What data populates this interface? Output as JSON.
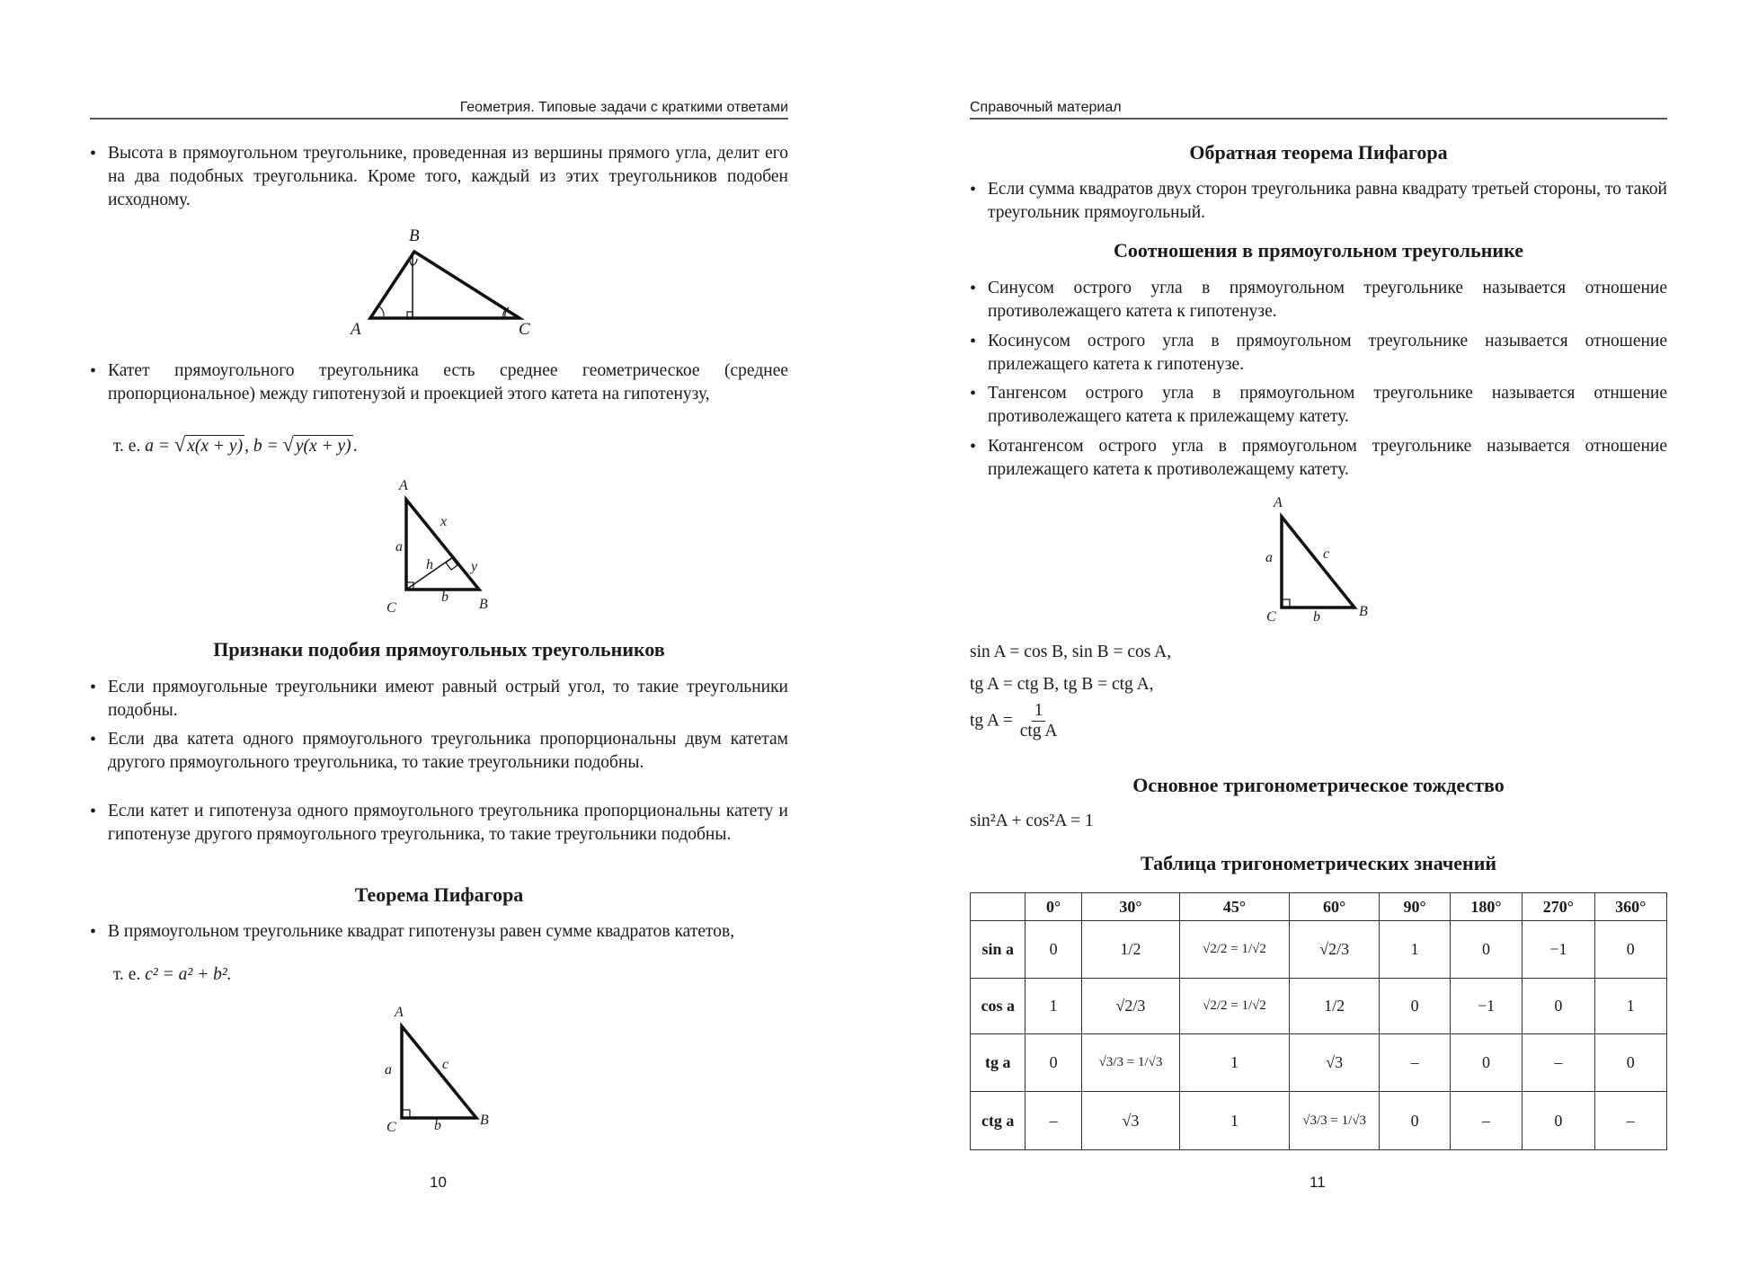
{
  "left_page": {
    "header": "Геометрия. Типовые задачи с краткими ответами",
    "bullet_altitude": "Высота в прямоугольном треугольнике, проведенная из вершины прямого угла, делит его на два подобных треугольника. Кроме того, каждый из этих треугольников подобен исходному.",
    "fig1_labels": {
      "A": "A",
      "B": "B",
      "C": "C"
    },
    "bullet_leg": "Катет прямоугольного треугольника есть среднее геометрическое (среднее пропорциональное) между гипотенузой и проекцией этого катета на гипотенузу,",
    "leg_formula": {
      "prefix": "т. е.",
      "a_lhs": "a =",
      "a_rad": "x(x + y)",
      "sep": ",",
      "b_lhs": "b =",
      "b_rad": "y(x + y)",
      "end": "."
    },
    "fig2_labels": {
      "A": "A",
      "B": "B",
      "C": "C",
      "a": "a",
      "b": "b",
      "h": "h",
      "x": "x",
      "y": "y"
    },
    "similarity_heading": "Признаки подобия прямоугольных треугольников",
    "similarity_bullets": [
      "Если прямоугольные треугольники имеют равный острый угол, то такие треугольники подобны.",
      "Если два катета одного прямоугольного треугольника пропорциональны двум катетам другого прямоугольного треугольника, то такие треугольники подобны.",
      "Если катет и гипотенуза одного прямоугольного треугольника пропорциональны катету и гипотенузе другого прямоугольного треугольника, то такие треугольники подобны."
    ],
    "pythagoras_heading": "Теорема Пифагора",
    "pythagoras_bullet": "В прямоугольном треугольнике квадрат гипотенузы равен сумме квадратов катетов,",
    "pythagoras_formula": {
      "prefix": "т. е.",
      "formula": "c² = a² + b²."
    },
    "fig3_labels": {
      "A": "A",
      "B": "B",
      "C": "C",
      "a": "a",
      "b": "b",
      "c": "c"
    },
    "page_number": "10"
  },
  "right_page": {
    "header": "Справочный материал",
    "converse_heading": "Обратная теорема Пифагора",
    "converse_bullet": "Если сумма квадратов двух сторон треугольника равна квадрату третьей стороны, то такой треугольник прямоугольный.",
    "ratios_heading": "Соотношения в прямоугольном треугольнике",
    "ratios_bullets": [
      "Синусом острого угла в прямоугольном треугольнике называется отношение противолежащего катета к гипотенузе.",
      "Косинусом острого угла в прямоугольном треугольнике называется отношение прилежащего катета к гипотенузе.",
      "Тангенсом острого угла в прямоугольном треугольнике называется отнше­ние противолежащего катета к прилежащему катету.",
      "Котангенсом острого угла в прямоугольном треугольнике называется отношение прилежащего катета к противолежащему катету."
    ],
    "fig_labels": {
      "A": "A",
      "B": "B",
      "C": "C",
      "a": "a",
      "b": "b",
      "c": "c"
    },
    "formula1": "sin A = cos B, sin B = cos A,",
    "formula2": "tg A = ctg B, tg B = ctg A,",
    "formula3": {
      "lhs": "tg A =",
      "num": "1",
      "den": "ctg A"
    },
    "identity_heading": "Основное тригонометрическое тождество",
    "identity_formula": "sin²A + cos²A = 1",
    "table_heading": "Таблица тригонометрических значений",
    "table": {
      "columns": [
        "",
        "0°",
        "30°",
        "45°",
        "60°",
        "90°",
        "180°",
        "270°",
        "360°"
      ],
      "rows": [
        {
          "label": "sin a",
          "cells": [
            "0",
            "1/2",
            "√2/2 = 1/√2",
            "√2/3",
            "1",
            "0",
            "−1",
            "0"
          ]
        },
        {
          "label": "cos a",
          "cells": [
            "1",
            "√2/3",
            "√2/2 = 1/√2",
            "1/2",
            "0",
            "−1",
            "0",
            "1"
          ]
        },
        {
          "label": "tg a",
          "cells": [
            "0",
            "√3/3 = 1/√3",
            "1",
            "√3",
            "–",
            "0",
            "–",
            "0"
          ]
        },
        {
          "label": "ctg a",
          "cells": [
            "–",
            "√3",
            "1",
            "√3/3 = 1/√3",
            "0",
            "–",
            "0",
            "–"
          ]
        }
      ]
    },
    "page_number": "11"
  }
}
